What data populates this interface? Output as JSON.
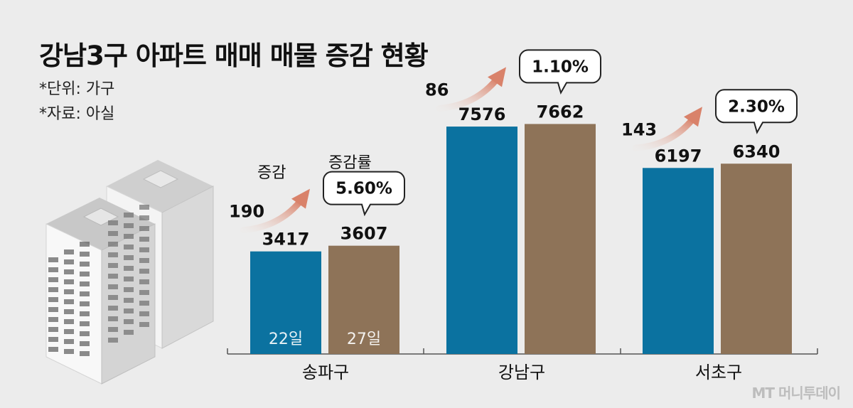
{
  "title": "강남3구 아파트 매매 매물 증감 현황",
  "notes": [
    "*단위: 가구",
    "*자료: 아실"
  ],
  "labels": {
    "change": "증감",
    "rate": "증감률"
  },
  "colors": {
    "day22": "#0b72a0",
    "day27": "#8e7358",
    "arrow": "#d9826a",
    "axis": "#555555"
  },
  "watermark": "MT 머니투데이",
  "chart_data": {
    "type": "bar",
    "categories": [
      "송파구",
      "강남구",
      "서초구"
    ],
    "series": [
      {
        "name": "22일",
        "values": [
          3417,
          7576,
          6197
        ]
      },
      {
        "name": "27일",
        "values": [
          3607,
          7662,
          6340
        ]
      }
    ],
    "changes": [
      190,
      86,
      143
    ],
    "rates": [
      "5.60%",
      "1.10%",
      "2.30%"
    ]
  }
}
